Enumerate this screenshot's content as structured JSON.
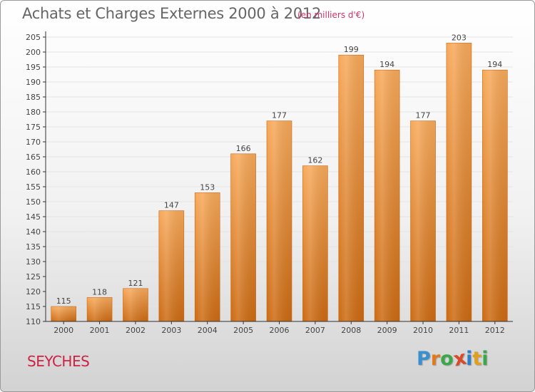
{
  "title": "Achats et Charges Externes 2000 à 2012",
  "unit_note": "(en milliers d'€)",
  "place_label": "SEYCHES",
  "logo": {
    "text": "Proxiti",
    "letters": [
      {
        "ch": "P",
        "color": "#3a8fd0"
      },
      {
        "ch": "r",
        "color": "#e07b1c"
      },
      {
        "ch": "o",
        "color": "#3aa84a"
      },
      {
        "ch": "x",
        "color": "#d84a2a"
      },
      {
        "ch": "i",
        "color": "#2e7fc8"
      },
      {
        "ch": "t",
        "color": "#e0a01c"
      },
      {
        "ch": "i",
        "color": "#3aa84a"
      }
    ]
  },
  "colors": {
    "bar_top": "#f7a95a",
    "bar_bottom": "#cc6a12",
    "bar_edge": "#c86a1a",
    "axis": "#333333",
    "grid": "#e4e4e4",
    "label": "#444444"
  },
  "chart_data": {
    "type": "bar",
    "title": "Achats et Charges Externes 2000 à 2012",
    "categories": [
      "2000",
      "2001",
      "2002",
      "2003",
      "2004",
      "2005",
      "2006",
      "2007",
      "2008",
      "2009",
      "2010",
      "2011",
      "2012"
    ],
    "values": [
      115,
      118,
      121,
      147,
      153,
      166,
      177,
      162,
      199,
      194,
      177,
      203,
      194
    ],
    "ylim": [
      110,
      205
    ],
    "yticks": [
      110,
      115,
      120,
      125,
      130,
      135,
      140,
      145,
      150,
      155,
      160,
      165,
      170,
      175,
      180,
      185,
      190,
      195,
      200,
      205
    ],
    "xlabel": "",
    "ylabel": "",
    "grid": true
  }
}
